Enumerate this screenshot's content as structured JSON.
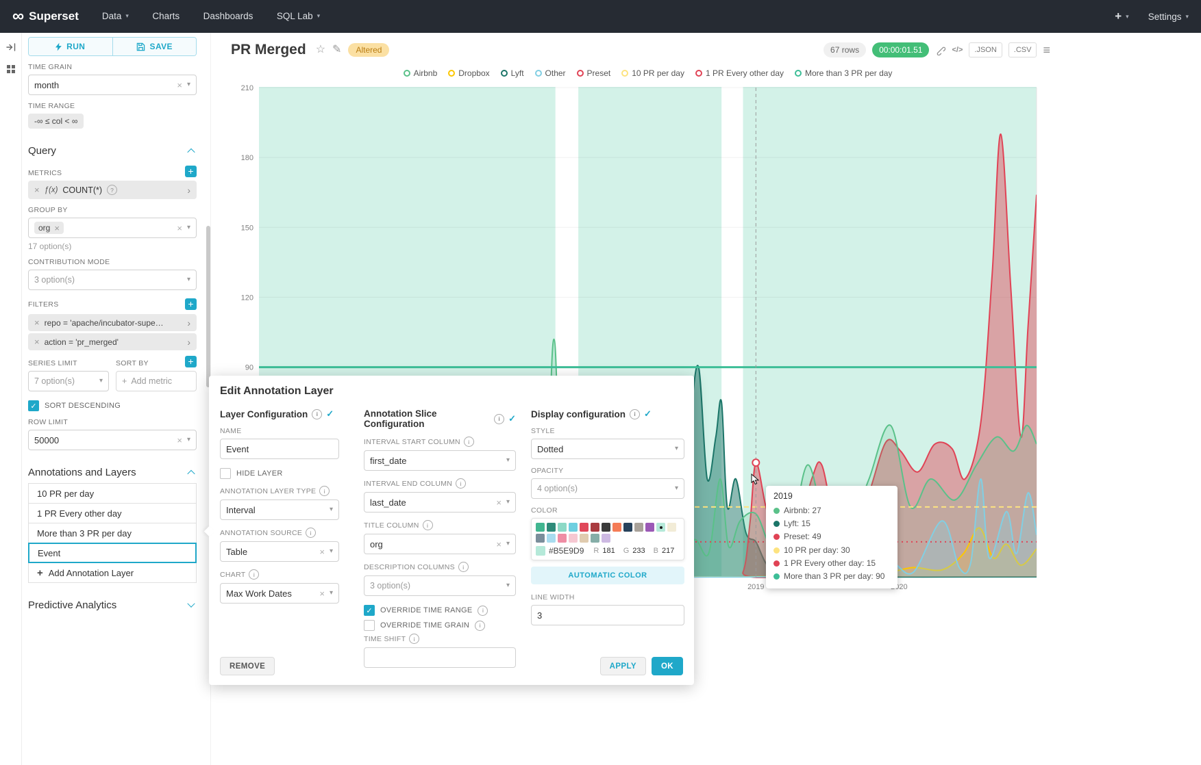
{
  "icons": {
    "infinity": "∞",
    "caret_down": "▾",
    "clear": "×",
    "chevron_right": "›",
    "plus": "+",
    "check": "✓",
    "star": "☆",
    "pencil": "✎",
    "menu": "≡",
    "code": "</>",
    "fx": "ƒ(x)",
    "help": "?",
    "info": "i"
  },
  "navbar": {
    "brand": "Superset",
    "items": [
      {
        "label": "Data",
        "caret": true
      },
      {
        "label": "Charts",
        "caret": false
      },
      {
        "label": "Dashboards",
        "caret": false
      },
      {
        "label": "SQL Lab",
        "caret": true
      }
    ],
    "plus_label": "+",
    "settings_label": "Settings"
  },
  "control_panel": {
    "run_label": "RUN",
    "save_label": "SAVE",
    "time_grain": {
      "label": "TIME GRAIN",
      "value": "month"
    },
    "time_range": {
      "label": "TIME RANGE",
      "value": "-∞ ≤ col < ∞"
    },
    "query": {
      "title": "Query",
      "metrics": {
        "label": "METRICS",
        "metric": "COUNT(*)"
      },
      "group_by": {
        "label": "GROUP BY",
        "value": "org",
        "hint": "17 option(s)"
      },
      "contribution_mode": {
        "label": "CONTRIBUTION MODE",
        "placeholder": "3 option(s)"
      },
      "filters": {
        "label": "FILTERS",
        "chips": [
          "repo = 'apache/incubator-supers...",
          "action = 'pr_merged'"
        ]
      },
      "series_limit": {
        "label": "SERIES LIMIT",
        "placeholder": "7 option(s)"
      },
      "sort_by": {
        "label": "SORT BY",
        "placeholder": "Add metric"
      },
      "sort_descending": {
        "label": "SORT DESCENDING",
        "checked": true
      },
      "row_limit": {
        "label": "ROW LIMIT",
        "value": "50000"
      }
    },
    "annotations": {
      "title": "Annotations and Layers",
      "layers": [
        "10 PR per day",
        "1 PR Every other day",
        "More than 3 PR per day",
        "Event"
      ],
      "selected": "Event",
      "add_label": "Add Annotation Layer"
    },
    "predictive": {
      "title": "Predictive Analytics"
    }
  },
  "chart_header": {
    "title": "PR Merged",
    "altered_badge": "Altered",
    "rows_badge": "67 rows",
    "timer_badge": "00:00:01.51",
    "json_label": ".JSON",
    "csv_label": ".CSV"
  },
  "legend": [
    {
      "label": "Airbnb",
      "color": "#5AC189"
    },
    {
      "label": "Dropbox",
      "color": "#FCC700"
    },
    {
      "label": "Lyft",
      "color": "#1B7568"
    },
    {
      "label": "Other",
      "color": "#82CFE3"
    },
    {
      "label": "Preset",
      "color": "#E04355"
    },
    {
      "label": "10 PR per day",
      "color": "#FDE380"
    },
    {
      "label": "1 PR Every other day",
      "color": "#E04355"
    },
    {
      "label": "More than 3 PR per day",
      "color": "#3DBE97"
    }
  ],
  "tooltip": {
    "title": "2019",
    "rows": [
      {
        "label": "Airbnb",
        "value": "27",
        "color": "#5AC189"
      },
      {
        "label": "Lyft",
        "value": "15",
        "color": "#1B7568"
      },
      {
        "label": "Preset",
        "value": "49",
        "color": "#E04355"
      },
      {
        "label": "10 PR per day",
        "value": "30",
        "color": "#FDE380"
      },
      {
        "label": "1 PR Every other day",
        "value": "15",
        "color": "#E04355"
      },
      {
        "label": "More than 3 PR per day",
        "value": "90",
        "color": "#3DBE97"
      }
    ]
  },
  "chart_data": {
    "type": "line",
    "title": "PR Merged",
    "x_domain": [
      2015.53,
      2020.96
    ],
    "ylim": [
      0,
      210
    ],
    "y_ticks": [
      90,
      120,
      150,
      180,
      210
    ],
    "x_ticks": [
      {
        "label": "2019",
        "x": 2019
      },
      {
        "label": "2020",
        "x": 2020
      }
    ],
    "grid": true,
    "legend_position": "top",
    "annotation_bands": {
      "name": "Event",
      "color": "#B5E9D9",
      "opacity": 0.6,
      "intervals": [
        [
          2015.53,
          2017.6
        ],
        [
          2017.76,
          2018.76
        ],
        [
          2018.91,
          2020.96
        ]
      ]
    },
    "annotation_lines": [
      {
        "name": "More than 3 PR per day",
        "value": 90,
        "color": "#3DBE97",
        "style": "solid",
        "width": 3
      },
      {
        "name": "10 PR per day",
        "value": 30,
        "color": "#FDE380",
        "style": "dashed",
        "width": 2
      },
      {
        "name": "1 PR Every other day",
        "value": 15,
        "color": "#E04355",
        "style": "dotted",
        "width": 2
      }
    ],
    "crosshair_x": 2019,
    "highlight": {
      "x": 2019,
      "y": 49,
      "color": "#E04355"
    },
    "series": [
      {
        "name": "Lyft",
        "color": "#1B7568",
        "fill_opacity": 0.5,
        "points": [
          [
            2015.53,
            0
          ],
          [
            2016.78,
            0
          ],
          [
            2016.85,
            3
          ],
          [
            2016.92,
            0
          ],
          [
            2018.35,
            0
          ],
          [
            2018.45,
            4
          ],
          [
            2018.54,
            66
          ],
          [
            2018.6,
            90
          ],
          [
            2018.66,
            42
          ],
          [
            2018.72,
            60
          ],
          [
            2018.76,
            75
          ],
          [
            2018.8,
            30
          ],
          [
            2018.86,
            42
          ],
          [
            2018.93,
            19
          ],
          [
            2019.0,
            15
          ],
          [
            2019.08,
            5
          ],
          [
            2019.2,
            1
          ],
          [
            2019.4,
            0
          ],
          [
            2020.96,
            0
          ]
        ]
      },
      {
        "name": "Preset",
        "color": "#E04355",
        "fill_opacity": 0.45,
        "points": [
          [
            2015.53,
            0
          ],
          [
            2018.8,
            0
          ],
          [
            2018.91,
            2
          ],
          [
            2018.96,
            24
          ],
          [
            2019.0,
            49
          ],
          [
            2019.07,
            30
          ],
          [
            2019.15,
            13
          ],
          [
            2019.27,
            16
          ],
          [
            2019.39,
            42
          ],
          [
            2019.46,
            48
          ],
          [
            2019.56,
            21
          ],
          [
            2019.67,
            18
          ],
          [
            2019.79,
            36
          ],
          [
            2019.91,
            58
          ],
          [
            2020.01,
            54
          ],
          [
            2020.13,
            45
          ],
          [
            2020.25,
            57
          ],
          [
            2020.37,
            55
          ],
          [
            2020.46,
            42
          ],
          [
            2020.57,
            66
          ],
          [
            2020.65,
            130
          ],
          [
            2020.71,
            190
          ],
          [
            2020.78,
            124
          ],
          [
            2020.85,
            60
          ],
          [
            2020.9,
            107
          ],
          [
            2020.96,
            164
          ]
        ]
      },
      {
        "name": "Airbnb",
        "color": "#5AC189",
        "fill_opacity": 0.18,
        "points": [
          [
            2015.53,
            1
          ],
          [
            2016.4,
            1
          ],
          [
            2016.73,
            2
          ],
          [
            2016.85,
            9
          ],
          [
            2016.97,
            1
          ],
          [
            2017.35,
            2
          ],
          [
            2017.52,
            6
          ],
          [
            2017.59,
            102
          ],
          [
            2017.68,
            4
          ],
          [
            2018.0,
            2
          ],
          [
            2018.45,
            5
          ],
          [
            2018.57,
            16
          ],
          [
            2018.67,
            10
          ],
          [
            2018.75,
            42
          ],
          [
            2018.81,
            13
          ],
          [
            2018.89,
            24
          ],
          [
            2019.0,
            27
          ],
          [
            2019.1,
            13
          ],
          [
            2019.22,
            7
          ],
          [
            2019.36,
            48
          ],
          [
            2019.51,
            16
          ],
          [
            2019.67,
            24
          ],
          [
            2019.79,
            42
          ],
          [
            2019.94,
            65
          ],
          [
            2020.08,
            30
          ],
          [
            2020.22,
            42
          ],
          [
            2020.39,
            33
          ],
          [
            2020.54,
            48
          ],
          [
            2020.68,
            60
          ],
          [
            2020.8,
            54
          ],
          [
            2020.89,
            65
          ],
          [
            2020.96,
            57
          ]
        ]
      },
      {
        "name": "Dropbox",
        "color": "#FCC700",
        "fill_opacity": 0.15,
        "points": [
          [
            2015.53,
            0
          ],
          [
            2018.9,
            0
          ],
          [
            2019.1,
            1
          ],
          [
            2019.3,
            4
          ],
          [
            2019.5,
            2
          ],
          [
            2019.7,
            6
          ],
          [
            2019.9,
            2
          ],
          [
            2020.1,
            4
          ],
          [
            2020.3,
            3
          ],
          [
            2020.45,
            10
          ],
          [
            2020.56,
            21
          ],
          [
            2020.66,
            8
          ],
          [
            2020.75,
            14
          ],
          [
            2020.85,
            5
          ],
          [
            2020.96,
            12
          ]
        ]
      },
      {
        "name": "Other",
        "color": "#82CFE3",
        "fill_opacity": 0.3,
        "points": [
          [
            2015.53,
            0
          ],
          [
            2019.5,
            0
          ],
          [
            2019.8,
            2
          ],
          [
            2019.95,
            6
          ],
          [
            2020.1,
            2
          ],
          [
            2020.3,
            24
          ],
          [
            2020.42,
            4
          ],
          [
            2020.5,
            6
          ],
          [
            2020.57,
            42
          ],
          [
            2020.63,
            8
          ],
          [
            2020.75,
            28
          ],
          [
            2020.82,
            10
          ],
          [
            2020.9,
            36
          ],
          [
            2020.96,
            18
          ]
        ]
      }
    ]
  },
  "modal": {
    "title": "Edit Annotation Layer",
    "layer_config": {
      "title": "Layer Configuration",
      "name": {
        "label": "NAME",
        "value": "Event"
      },
      "hide_layer": {
        "label": "HIDE LAYER",
        "checked": false
      },
      "layer_type": {
        "label": "ANNOTATION LAYER TYPE",
        "value": "Interval"
      },
      "source": {
        "label": "ANNOTATION SOURCE",
        "value": "Table"
      },
      "chart": {
        "label": "CHART",
        "value": "Max Work Dates"
      }
    },
    "slice_config": {
      "title": "Annotation Slice Configuration",
      "interval_start": {
        "label": "INTERVAL START COLUMN",
        "value": "first_date"
      },
      "interval_end": {
        "label": "INTERVAL END COLUMN",
        "value": "last_date"
      },
      "title_column": {
        "label": "TITLE COLUMN",
        "value": "org"
      },
      "description_columns": {
        "label": "DESCRIPTION COLUMNS",
        "placeholder": "3 option(s)"
      },
      "override_time_range": {
        "label": "OVERRIDE TIME RANGE",
        "checked": true
      },
      "override_time_grain": {
        "label": "OVERRIDE TIME GRAIN",
        "checked": false
      },
      "time_shift": {
        "label": "TIME SHIFT",
        "value": ""
      }
    },
    "display_config": {
      "title": "Display configuration",
      "style": {
        "label": "STYLE",
        "value": "Dotted"
      },
      "opacity": {
        "label": "OPACITY",
        "placeholder": "4 option(s)"
      },
      "color": {
        "label": "COLOR",
        "hex": "#B5E9D9",
        "r_label": "R",
        "r": "181",
        "g_label": "G",
        "g": "233",
        "b_label": "B",
        "b": "217",
        "palette_row1": [
          "#41B690",
          "#2E8B7A",
          "#8CD9C6",
          "#6ECFE0",
          "#E0485A",
          "#A93B40",
          "#3B3B3B",
          "#F57C57",
          "#27425C",
          "#A9A29A",
          "#9B59B6",
          "#B5E9D9",
          "#F2ECD7"
        ],
        "palette_row2": [
          "#7A8E9B",
          "#A8DCEF",
          "#EF8DA4",
          "#F6C8D2",
          "#E0CBAF",
          "#86AEA8",
          "#CDB9E2"
        ],
        "selected": {
          "row": 0,
          "index": 11
        },
        "automatic_label": "AUTOMATIC COLOR"
      },
      "line_width": {
        "label": "LINE WIDTH",
        "value": "3"
      }
    },
    "remove_label": "REMOVE",
    "apply_label": "APPLY",
    "ok_label": "OK"
  }
}
